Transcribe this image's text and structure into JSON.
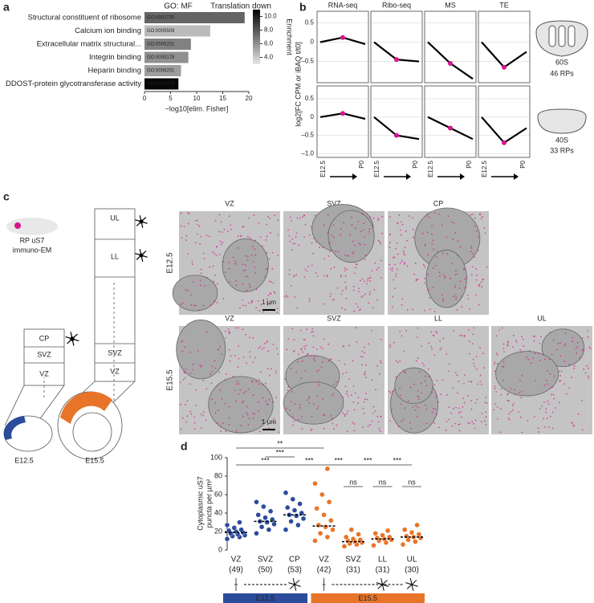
{
  "figure": {
    "letters": [
      "a",
      "b",
      "c",
      "d"
    ],
    "panel_c": {
      "icon_label": [
        "RP uS7",
        "immuno-EM"
      ],
      "e15_layers": [
        "UL",
        "LL",
        "SVZ",
        "VZ"
      ],
      "e12_layers": [
        "CP",
        "SVZ",
        "VZ"
      ],
      "stages": [
        {
          "name": "E12.5",
          "color": "#2b4c9b"
        },
        {
          "name": "E15.5",
          "color": "#e8742a"
        }
      ],
      "micrographs": [
        {
          "row": "E12.5",
          "color": "#2b4c9b",
          "panels": [
            "VZ",
            "SVZ",
            "CP"
          ]
        },
        {
          "row": "E15.5",
          "color": "#e8742a",
          "panels": [
            "VZ",
            "SVZ",
            "LL",
            "UL"
          ]
        }
      ],
      "scale_bar": "1 µm",
      "dot_color": "#d6158c"
    }
  },
  "chart_data": [
    {
      "type": "bar",
      "title": "GO: MF",
      "subtitle": "Translation down",
      "highlight_index": 0,
      "highlight_color": "#d6158c",
      "categories": [
        "Structural constituent of ribosome",
        "Calcium ion binding",
        "Extracellular matrix structural...",
        "Integrin binding",
        "Heparin binding",
        "DDOST-protein glycotransferase activity"
      ],
      "go_ids": [
        "GO:0003735",
        "GO:0005509",
        "GO:0005201",
        "GO:0005178",
        "GO:0008201",
        "GO:0004579"
      ],
      "values": [
        19.2,
        12.6,
        8.9,
        8.4,
        7.0,
        6.5
      ],
      "enrichment": [
        7.5,
        4.5,
        6.5,
        6.0,
        5.5,
        10.8
      ],
      "xlim": [
        0,
        20
      ],
      "xticks": [
        0,
        5,
        10,
        15,
        20
      ],
      "x_label": "−log10[elim. Fisher]",
      "colorbar": {
        "label": "Enrichment",
        "lim": [
          3,
          11
        ],
        "ticks": [
          {
            "value": 4,
            "label": "4.0"
          },
          {
            "value": 6,
            "label": "6.0"
          },
          {
            "value": 8,
            "label": "8.0"
          },
          {
            "value": 10,
            "label": "10.0"
          }
        ]
      }
    },
    {
      "type": "line",
      "panels": [
        "RNA-seq",
        "Ribo-seq",
        "MS",
        "TE"
      ],
      "categories": [
        "E12.5",
        null,
        "P0"
      ],
      "y_label": "log2[FC CPM or iBAQ t/t0]",
      "mean_color": "#000000",
      "highlight_color": "#d6158c",
      "rows": [
        {
          "name": "60S",
          "count_label": "46 RPs",
          "ylim": [
            -1.05,
            0.8
          ],
          "yticks": [
            0.5,
            0,
            {
              "value": -0.5,
              "label": "–0.5"
            }
          ],
          "means": [
            [
              0,
              0.12,
              -0.05
            ],
            [
              0,
              -0.45,
              -0.5
            ],
            [
              0,
              -0.55,
              -0.95
            ],
            [
              0,
              -0.65,
              -0.25
            ]
          ]
        },
        {
          "name": "40S",
          "count_label": "33 RPs",
          "ylim": [
            -1.1,
            0.85
          ],
          "yticks": [
            0.5,
            0,
            {
              "value": -0.5,
              "label": "–0.5"
            },
            {
              "value": -1.0,
              "label": "–1.0"
            }
          ],
          "means": [
            [
              0,
              0.1,
              -0.05
            ],
            [
              0,
              -0.5,
              -0.6
            ],
            [
              0,
              -0.3,
              -0.6
            ],
            [
              0,
              -0.7,
              -0.3
            ]
          ]
        }
      ]
    },
    {
      "type": "strip",
      "y_label": [
        "Cytoplasmic uS7",
        "puncta per µm²"
      ],
      "categories": [
        "VZ",
        "SVZ",
        "CP",
        "VZ",
        "SVZ",
        "LL",
        "UL"
      ],
      "n_labels": [
        "(49)",
        "(50)",
        "(53)",
        "(42)",
        "(31)",
        "(31)",
        "(30)"
      ],
      "colors": [
        "#2b4c9b",
        "#2b4c9b",
        "#2b4c9b",
        "#e8742a",
        "#e8742a",
        "#e8742a",
        "#e8742a"
      ],
      "points": [
        [
          12,
          14,
          15,
          16,
          17,
          18,
          19,
          20,
          21,
          22,
          24,
          27,
          30
        ],
        [
          18,
          22,
          25,
          28,
          30,
          31,
          33,
          35,
          38,
          42,
          47,
          52
        ],
        [
          22,
          27,
          31,
          34,
          37,
          38,
          40,
          43,
          46,
          50,
          55,
          62
        ],
        [
          10,
          14,
          18,
          22,
          25,
          27,
          32,
          38,
          45,
          52,
          60,
          72,
          88
        ],
        [
          4,
          6,
          7,
          8,
          9,
          10,
          11,
          12,
          14,
          17,
          22
        ],
        [
          5,
          8,
          10,
          11,
          12,
          13,
          14,
          16,
          18,
          21
        ],
        [
          6,
          9,
          11,
          13,
          14,
          15,
          17,
          19,
          22,
          27
        ]
      ],
      "medians": [
        19,
        31,
        38,
        26,
        9,
        12,
        14
      ],
      "ylim": [
        0,
        100
      ],
      "yticks": [
        0,
        20,
        40,
        60,
        80,
        100
      ],
      "significance": [
        {
          "label": "**",
          "from": 0,
          "to": 3
        },
        {
          "label": "***",
          "from": 1,
          "to": 2
        },
        {
          "label": "***",
          "from": 0,
          "to": 2
        },
        {
          "label": "***",
          "from": 2,
          "to": 3
        },
        {
          "label": "***",
          "from": 3,
          "to": 4
        },
        {
          "label": "***",
          "from": 4,
          "to": 5
        },
        {
          "label": "***",
          "from": 5,
          "to": 6
        },
        {
          "label": "ns",
          "from": 4,
          "to": 4
        },
        {
          "label": "ns",
          "from": 5,
          "to": 5
        },
        {
          "label": "ns",
          "from": 6,
          "to": 6
        }
      ],
      "stages": [
        {
          "name": "E12.5",
          "color": "#2b4c9b",
          "from": 0,
          "to": 2
        },
        {
          "name": "E15.5",
          "color": "#e8742a",
          "from": 3,
          "to": 6
        }
      ]
    }
  ]
}
